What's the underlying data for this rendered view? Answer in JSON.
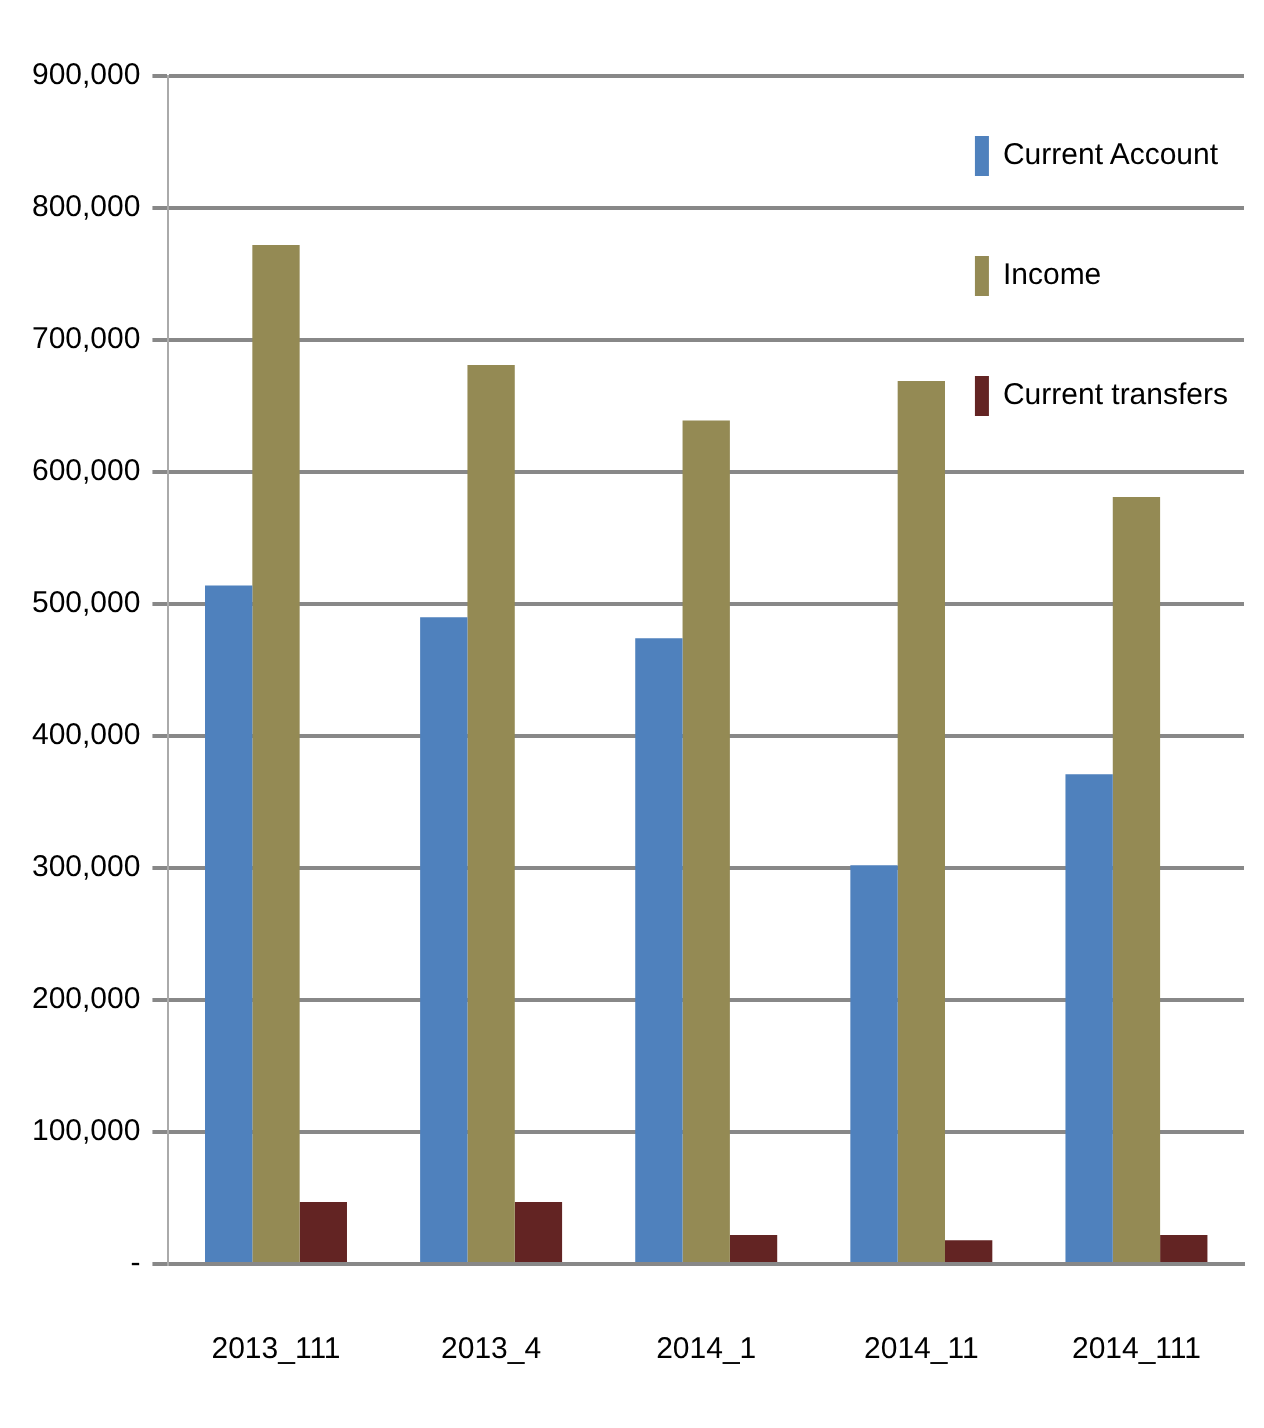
{
  "chart_data": {
    "type": "bar",
    "categories": [
      "2013_111",
      "2013_4",
      "2014_1",
      "2014_11",
      "2014_111"
    ],
    "series": [
      {
        "name": "Current Account",
        "color": "#4f81bd",
        "values": [
          514000,
          490000,
          474000,
          302000,
          371000
        ]
      },
      {
        "name": "Income",
        "color": "#948a54",
        "values": [
          772000,
          681000,
          639000,
          669000,
          581000
        ]
      },
      {
        "name": "Current transfers",
        "color": "#632423",
        "values": [
          47000,
          47000,
          22000,
          18000,
          22000
        ]
      }
    ],
    "ylim": [
      0,
      900000
    ],
    "yticks": [
      {
        "value": 0,
        "label": "-"
      },
      {
        "value": 100000,
        "label": "100,000"
      },
      {
        "value": 200000,
        "label": "200,000"
      },
      {
        "value": 300000,
        "label": "300,000"
      },
      {
        "value": 400000,
        "label": "400,000"
      },
      {
        "value": 500000,
        "label": "500,000"
      },
      {
        "value": 600000,
        "label": "600,000"
      },
      {
        "value": 700000,
        "label": "700,000"
      },
      {
        "value": 800000,
        "label": "800,000"
      },
      {
        "value": 900000,
        "label": "900,000"
      }
    ],
    "grid": "y",
    "legend": "top right"
  }
}
